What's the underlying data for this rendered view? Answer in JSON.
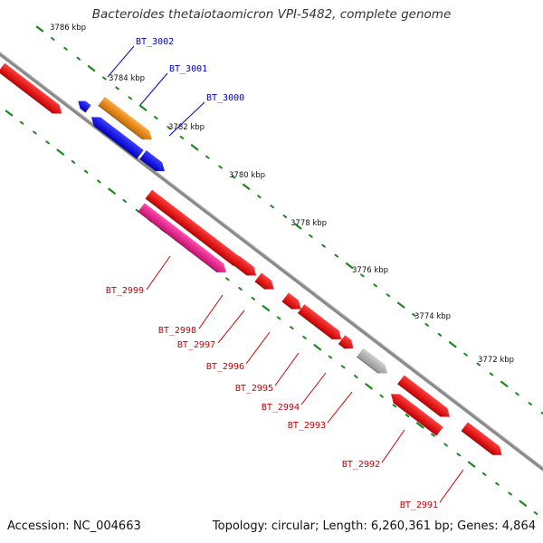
{
  "title": "Bacteroides thetaiotaomicron VPI-5482, complete genome",
  "footer": {
    "accession": "Accession: NC_004663",
    "summary": "Topology: circular; Length: 6,260,361 bp; Genes: 4,864"
  },
  "colors": {
    "backbone": "#7a7a7a",
    "tick_dots": "#1a8a1a",
    "forward_strand_label": "#0000cc",
    "reverse_strand_label": "#cc0000"
  },
  "ticks": [
    "3786 kbp",
    "3784 kbp",
    "3782 kbp",
    "3780 kbp",
    "3778 kbp",
    "3776 kbp",
    "3774 kbp",
    "3772 kbp"
  ],
  "genes": [
    {
      "label": "",
      "color": "#ff0000"
    },
    {
      "label": "",
      "color": "#0000ff"
    },
    {
      "label": "BT_3002",
      "color": "#0000ff"
    },
    {
      "label": "BT_3001",
      "color": "#ff8c00"
    },
    {
      "label": "BT_3000",
      "color": "#0000ff"
    },
    {
      "label": "BT_2999",
      "color": "#ff1493"
    },
    {
      "label": "BT_2998",
      "color": "#ff0000"
    },
    {
      "label": "BT_2997",
      "color": "#ff0000"
    },
    {
      "label": "BT_2996",
      "color": "#ff0000"
    },
    {
      "label": "BT_2995",
      "color": "#ff0000"
    },
    {
      "label": "BT_2994",
      "color": "#ff0000"
    },
    {
      "label": "BT_2993",
      "color": "#ff0000"
    },
    {
      "label": "BT_2992",
      "color": "#c0c0c0"
    },
    {
      "label": "BT_2991",
      "color": "#ff0000"
    },
    {
      "label": "",
      "color": "#ff0000"
    },
    {
      "label": "",
      "color": "#ff0000"
    }
  ]
}
